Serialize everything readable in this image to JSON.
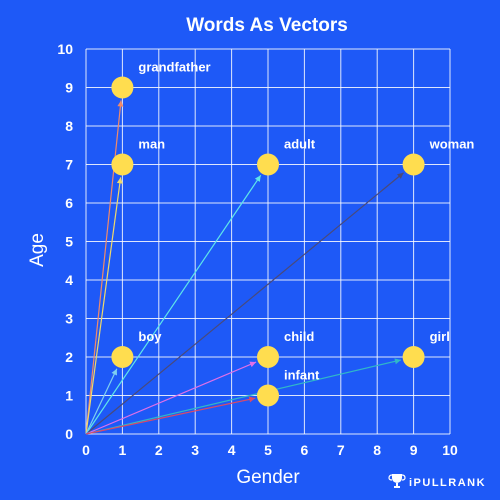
{
  "brand": {
    "name": "iPULLRANK",
    "icon": "trophy-icon"
  },
  "colors": {
    "background": "#1e59f7",
    "grid": "#ffffff",
    "point": "#ffdd4f",
    "text": "#ffffff"
  },
  "chart_data": {
    "type": "scatter",
    "title": "Words As Vectors",
    "xlabel": "Gender",
    "ylabel": "Age",
    "xlim": [
      0,
      10
    ],
    "ylim": [
      0,
      10
    ],
    "xticks": [
      "0",
      "1",
      "2",
      "3",
      "4",
      "5",
      "6",
      "7",
      "8",
      "9",
      "10"
    ],
    "yticks": [
      "0",
      "1",
      "2",
      "3",
      "4",
      "5",
      "6",
      "7",
      "8",
      "9",
      "10"
    ],
    "grid": true,
    "legend": "none",
    "origin": [
      0,
      0
    ],
    "points": [
      {
        "label": "grandfather",
        "x": 1,
        "y": 9,
        "vector_color": "#f08a6a"
      },
      {
        "label": "man",
        "x": 1,
        "y": 7,
        "vector_color": "#f0d86a"
      },
      {
        "label": "adult",
        "x": 5,
        "y": 7,
        "vector_color": "#5ee6ea"
      },
      {
        "label": "woman",
        "x": 9,
        "y": 7,
        "vector_color": "#4a4a7a"
      },
      {
        "label": "boy",
        "x": 1,
        "y": 2,
        "vector_color": "#7fd0f0"
      },
      {
        "label": "child",
        "x": 5,
        "y": 2,
        "vector_color": "#e070e8"
      },
      {
        "label": "girl",
        "x": 9,
        "y": 2,
        "vector_color": "#30b8c8"
      },
      {
        "label": "infant",
        "x": 5,
        "y": 1,
        "vector_color": "#d84a6a"
      }
    ]
  }
}
